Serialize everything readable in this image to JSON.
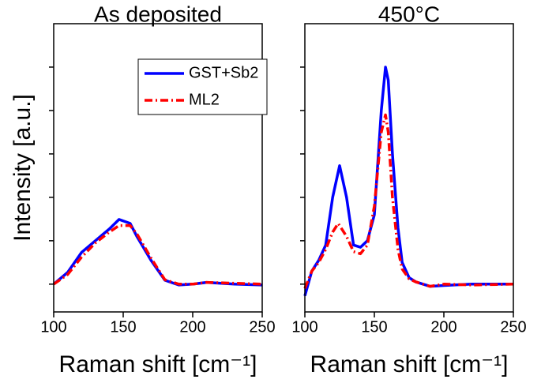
{
  "chart_data": [
    {
      "type": "line",
      "title": "As deposited",
      "xlabel": "Raman shift [cm⁻¹]",
      "ylabel": "Intensity [a.u.]",
      "xlim": [
        100,
        250
      ],
      "xticks": [
        100,
        150,
        200,
        250
      ],
      "ylim": [
        -0.64,
        6
      ],
      "yticks": [
        0,
        1,
        2,
        3,
        4,
        5
      ],
      "legend": "upper right",
      "series": [
        {
          "name": "GST+Sb2",
          "color": "#0000ff",
          "style": "solid",
          "x": [
            100,
            110,
            120,
            130,
            140,
            147,
            155,
            160,
            170,
            180,
            190,
            200,
            210,
            230,
            250
          ],
          "values": [
            0,
            0.27,
            0.73,
            1.0,
            1.27,
            1.49,
            1.4,
            1.09,
            0.55,
            0.09,
            -0.02,
            0,
            0.04,
            0,
            -0.02
          ]
        },
        {
          "name": "ML2",
          "color": "#ff0000",
          "style": "dashdot",
          "x": [
            100,
            110,
            120,
            130,
            140,
            147,
            155,
            160,
            170,
            180,
            190,
            200,
            210,
            230,
            250
          ],
          "values": [
            0,
            0.22,
            0.62,
            0.95,
            1.2,
            1.35,
            1.35,
            1.15,
            0.6,
            0.1,
            0,
            0,
            0.04,
            0.02,
            0
          ]
        }
      ]
    },
    {
      "type": "line",
      "title": "450°C",
      "xlabel": "Raman shift [cm⁻¹]",
      "xlim": [
        100,
        250
      ],
      "xticks": [
        100,
        150,
        200,
        250
      ],
      "ylim": [
        -0.64,
        6
      ],
      "yticks": [
        0,
        1,
        2,
        3,
        4,
        5
      ],
      "series": [
        {
          "color": "#0000ff",
          "style": "solid",
          "x": [
            100,
            105,
            110,
            115,
            120,
            125,
            130,
            135,
            140,
            145,
            150,
            155,
            158,
            160,
            163,
            167,
            170,
            175,
            180,
            190,
            200,
            220,
            250
          ],
          "values": [
            -0.27,
            0.3,
            0.55,
            0.9,
            2.0,
            2.73,
            2.0,
            0.9,
            0.85,
            1.0,
            1.6,
            4.0,
            5.0,
            4.7,
            3.0,
            1.3,
            0.5,
            0.15,
            0.05,
            -0.05,
            -0.03,
            0,
            0
          ]
        },
        {
          "color": "#ff0000",
          "style": "dashdot",
          "x": [
            100,
            105,
            110,
            115,
            120,
            124,
            130,
            135,
            140,
            145,
            150,
            155,
            158,
            160,
            163,
            167,
            170,
            175,
            180,
            190,
            200,
            220,
            250
          ],
          "values": [
            -0.1,
            0.3,
            0.5,
            0.8,
            1.2,
            1.4,
            1.1,
            0.75,
            0.7,
            0.9,
            1.8,
            3.5,
            3.9,
            3.5,
            2.0,
            0.8,
            0.35,
            0.12,
            0.05,
            -0.05,
            0,
            -0.02,
            0
          ]
        }
      ]
    }
  ]
}
